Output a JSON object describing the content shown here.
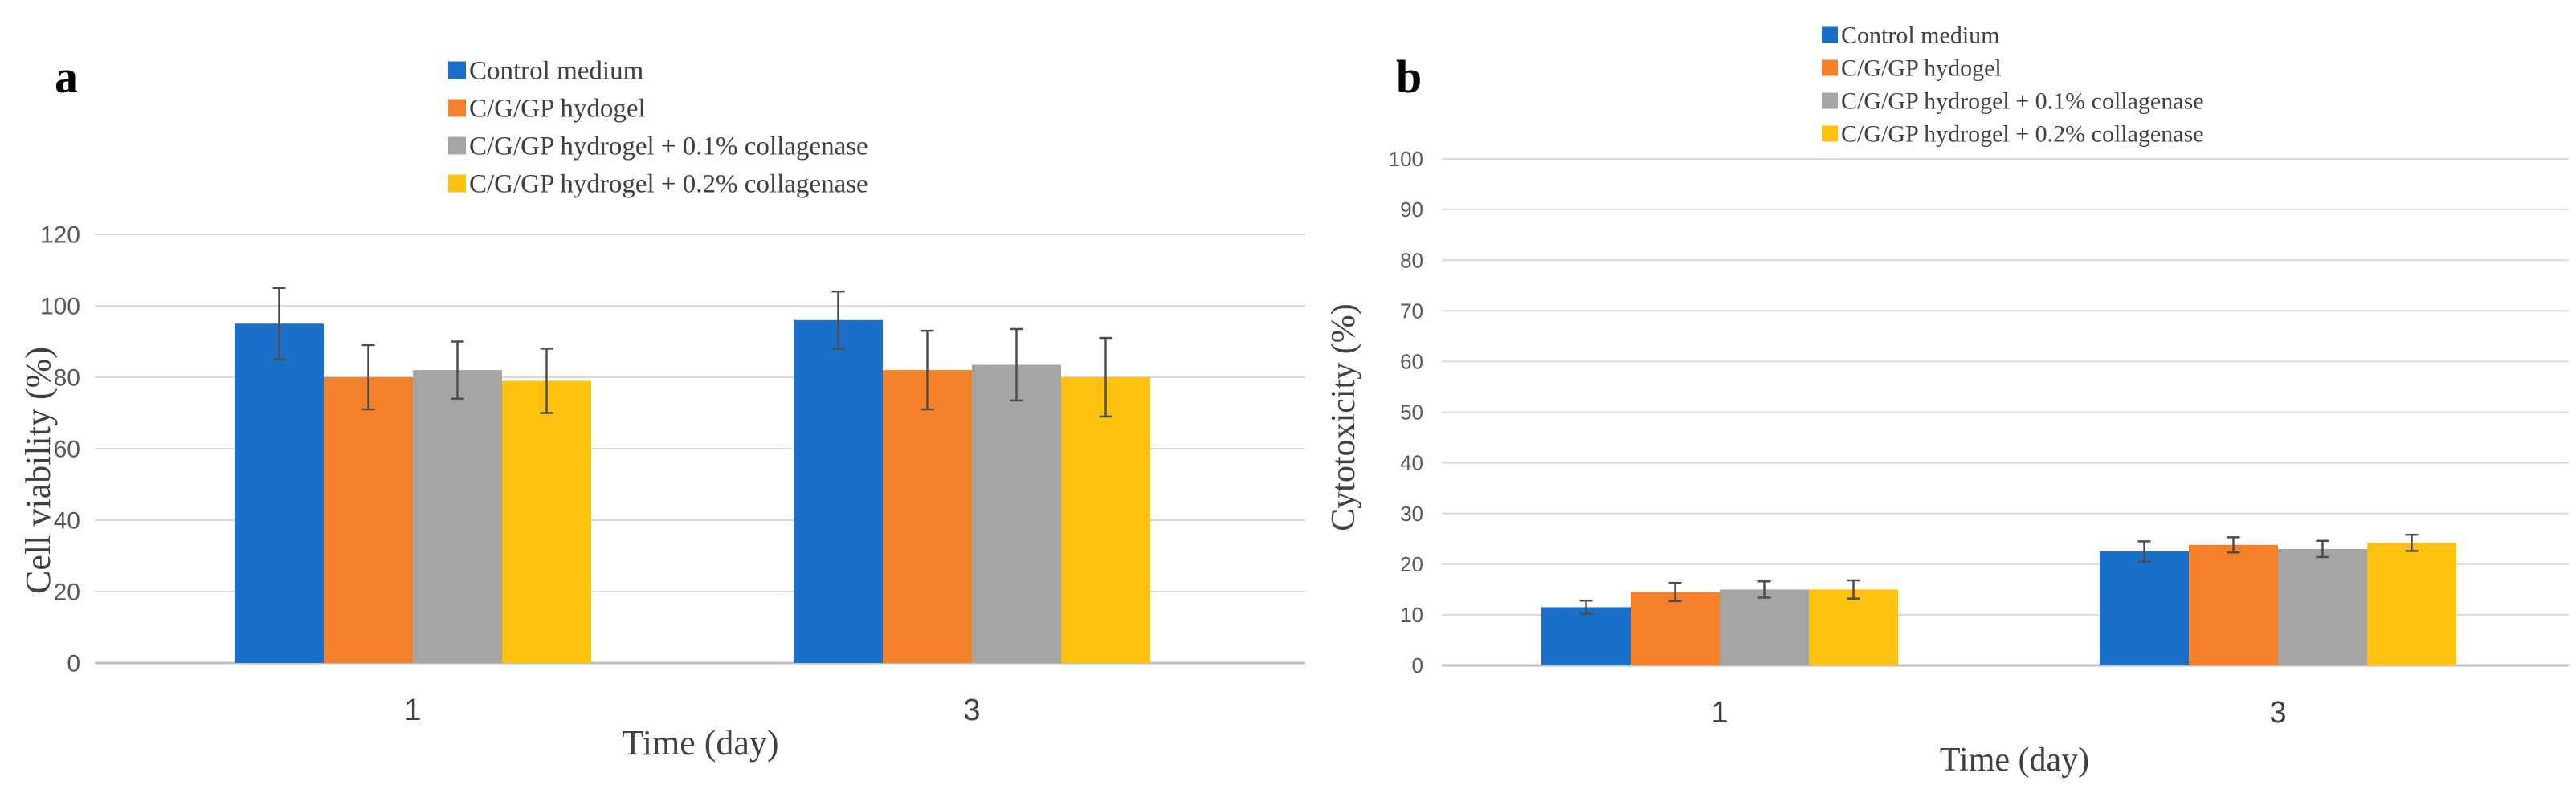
{
  "colors": {
    "series": [
      "#1a70c9",
      "#f5802a",
      "#a5a5a5",
      "#fdc10f"
    ],
    "grid": "#d9d9d9",
    "axis": "#bfbfbf",
    "errorbar": "#4d4d4d"
  },
  "chart_data": [
    {
      "panel": "a",
      "type": "bar",
      "categories": [
        "1",
        "3"
      ],
      "series": [
        {
          "name": "Control medium",
          "values": [
            95,
            96
          ],
          "errors": [
            10,
            8
          ]
        },
        {
          "name": "C/G/GP hydogel",
          "values": [
            80,
            82
          ],
          "errors": [
            9,
            11
          ]
        },
        {
          "name": "C/G/GP hydrogel + 0.1% collagenase",
          "values": [
            82,
            83.5
          ],
          "errors": [
            8,
            10
          ]
        },
        {
          "name": "C/G/GP hydrogel + 0.2% collagenase",
          "values": [
            79,
            80
          ],
          "errors": [
            9,
            11
          ]
        }
      ],
      "yticks": [
        "0",
        "20",
        "40",
        "60",
        "80",
        "100",
        "120"
      ],
      "ylim": [
        0,
        120
      ],
      "xlabel": "Time (day)",
      "ylabel": "Cell viability (%)",
      "grid": true,
      "legend_position": "top"
    },
    {
      "panel": "b",
      "type": "bar",
      "categories": [
        "1",
        "3"
      ],
      "series": [
        {
          "name": "Control medium",
          "values": [
            11.5,
            22.5
          ],
          "errors": [
            1.3,
            2
          ]
        },
        {
          "name": "C/G/GP hydogel",
          "values": [
            14.5,
            23.8
          ],
          "errors": [
            1.8,
            1.5
          ]
        },
        {
          "name": "C/G/GP hydrogel + 0.1% collagenase",
          "values": [
            15,
            23
          ],
          "errors": [
            1.6,
            1.6
          ]
        },
        {
          "name": "C/G/GP hydrogel + 0.2% collagenase",
          "values": [
            15,
            24.2
          ],
          "errors": [
            1.8,
            1.6
          ]
        }
      ],
      "yticks": [
        "0",
        "10",
        "20",
        "30",
        "40",
        "50",
        "60",
        "70",
        "80",
        "90",
        "100"
      ],
      "ylim": [
        0,
        100
      ],
      "xlabel": "Time (day)",
      "ylabel": "Cytotoxicity (%)",
      "grid": true,
      "legend_position": "top"
    }
  ]
}
